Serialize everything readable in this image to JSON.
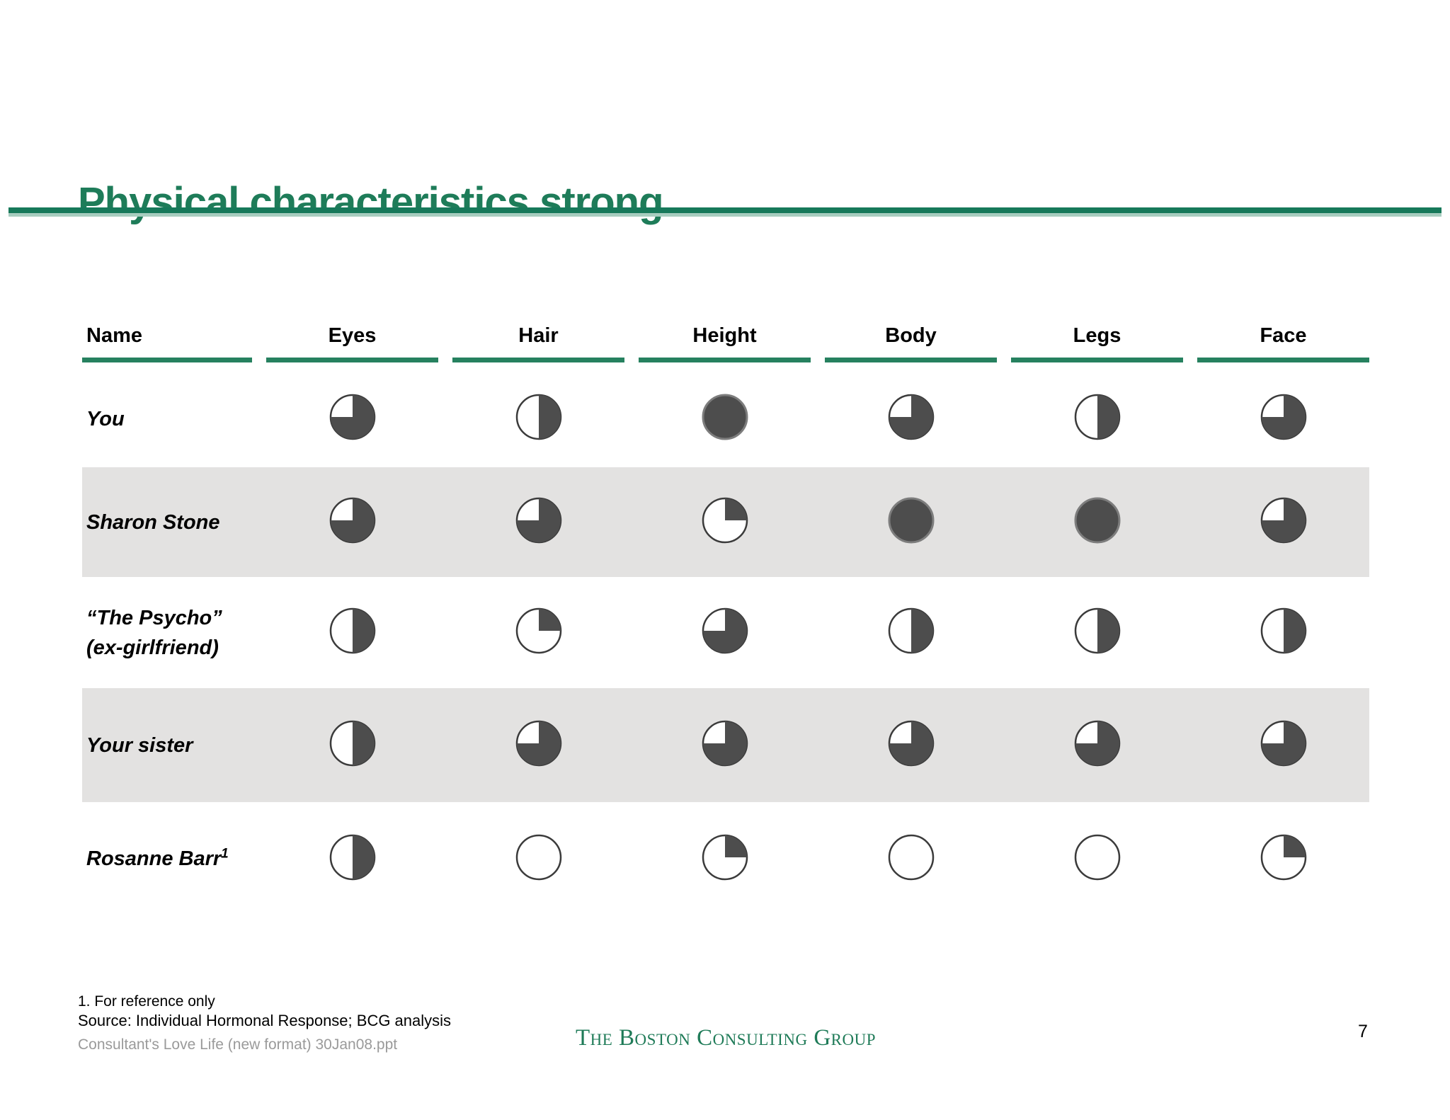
{
  "slide": {
    "title": "Physical characteristics strong",
    "page_number": "7",
    "footnote": "1. For reference only",
    "source": "Source: Individual Hormonal Response; BCG analysis",
    "filename": "Consultant's Love Life (new format) 30Jan08.ppt",
    "logo": "The Boston Consulting Group"
  },
  "colors": {
    "accent_green": "#1e7c59",
    "rule_dark_green": "#17795a",
    "rule_light_green": "#a8cdbf",
    "header_underline_green": "#26815f",
    "harvey_ball_fill": "#4d4d4d",
    "stripe_gray": "#e3e2e1",
    "filename_gray": "#9a9a9a"
  },
  "chart_data": {
    "type": "table",
    "title": "Physical characteristics strong",
    "legend": "Harvey balls: fraction filled clockwise from 12 o'clock (0 = empty, 0.25, 0.5, 0.75, 1 = full)",
    "columns": [
      "Name",
      "Eyes",
      "Hair",
      "Height",
      "Body",
      "Legs",
      "Face"
    ],
    "rows": [
      {
        "name": "You",
        "name_line2": "",
        "name_superscript": "",
        "striped": false,
        "values": [
          0.75,
          0.5,
          1,
          0.75,
          0.5,
          0.75
        ]
      },
      {
        "name": "Sharon Stone",
        "name_line2": "",
        "name_superscript": "",
        "striped": true,
        "values": [
          0.75,
          0.75,
          0.25,
          1,
          1,
          0.75
        ]
      },
      {
        "name": "“The Psycho”",
        "name_line2": "(ex-girlfriend)",
        "name_superscript": "",
        "striped": false,
        "values": [
          0.5,
          0.25,
          0.75,
          0.5,
          0.5,
          0.5
        ]
      },
      {
        "name": "Your sister",
        "name_line2": "",
        "name_superscript": "",
        "striped": true,
        "values": [
          0.5,
          0.75,
          0.75,
          0.75,
          0.75,
          0.75
        ]
      },
      {
        "name": "Rosanne Barr",
        "name_line2": "",
        "name_superscript": "1",
        "striped": false,
        "values": [
          0.5,
          0,
          0.25,
          0,
          0,
          0.25
        ]
      }
    ]
  }
}
